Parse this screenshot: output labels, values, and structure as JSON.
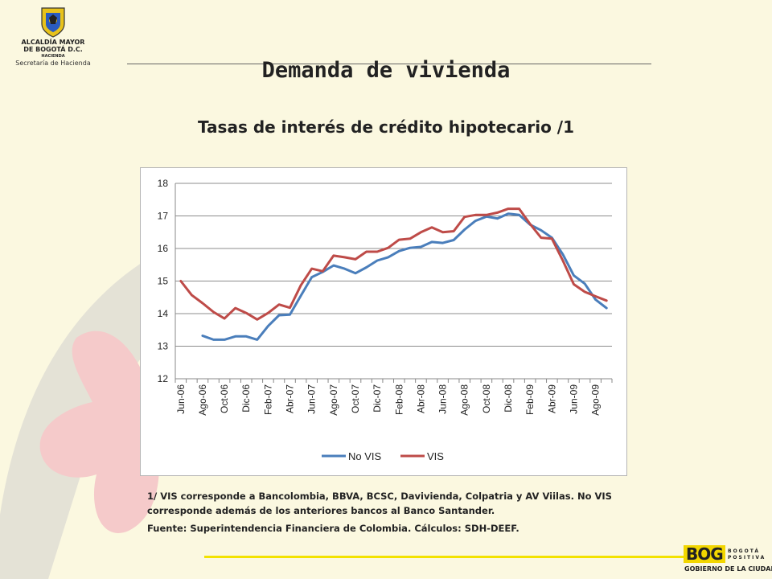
{
  "header": {
    "org_line1": "ALCALDÍA MAYOR",
    "org_line2": "DE BOGOTÁ D.C.",
    "org_line3": "HACIENDA",
    "org_line4": "Secretaría de Hacienda"
  },
  "title": "Demanda de vivienda",
  "subtitle": "Tasas de interés de crédito hipotecario /1",
  "footnote": "1/ VIS corresponde a Bancolombia, BBVA, BCSC, Davivienda, Colpatria y AV Viilas. No VIS corresponde además de los anteriores bancos al Banco Santander.",
  "source": "Fuente: Superintendencia Financiera de Colombia. Cálculos: SDH-DEEF.",
  "footer_logo": {
    "brand": "BOG",
    "slogan1": "BOGOTÁ",
    "slogan2": "POSITIVA",
    "tagline": "GOBIERNO DE LA CIUDAD"
  },
  "colors": {
    "background": "#fbf8e0",
    "series_no_vis": "#4a7ebb",
    "series_vis": "#be4b48",
    "accent_yellow": "#f2e200",
    "deco_red": "#f3c4c4",
    "deco_gray": "#e0e0d8"
  },
  "chart_data": {
    "type": "line",
    "ylim": [
      12,
      18
    ],
    "yticks": [
      "12",
      "13",
      "14",
      "15",
      "16",
      "17",
      "18"
    ],
    "grid": "horizontal",
    "legend_position": "bottom",
    "x_tick_labels": [
      "Jun-06",
      "Ago-06",
      "Oct-06",
      "Dic-06",
      "Feb-07",
      "Abr-07",
      "Jun-07",
      "Ago-07",
      "Oct-07",
      "Dic-07",
      "Feb-08",
      "Abr-08",
      "Jun-08",
      "Ago-08",
      "Oct-08",
      "Dic-08",
      "Feb-09",
      "Abr-09",
      "Jun-09",
      "Ago-09"
    ],
    "x": [
      "Jun-06",
      "Jul-06",
      "Ago-06",
      "Sep-06",
      "Oct-06",
      "Nov-06",
      "Dic-06",
      "Ene-07",
      "Feb-07",
      "Mar-07",
      "Abr-07",
      "May-07",
      "Jun-07",
      "Jul-07",
      "Ago-07",
      "Sep-07",
      "Oct-07",
      "Nov-07",
      "Dic-07",
      "Ene-08",
      "Feb-08",
      "Mar-08",
      "Abr-08",
      "May-08",
      "Jun-08",
      "Jul-08",
      "Ago-08",
      "Sep-08",
      "Oct-08",
      "Nov-08",
      "Dic-08",
      "Ene-09",
      "Feb-09",
      "Mar-09",
      "Abr-09",
      "May-09",
      "Jun-09",
      "Jul-09",
      "Ago-09",
      "Sep-09"
    ],
    "series": [
      {
        "name": "No VIS",
        "color": "#4a7ebb",
        "values": [
          null,
          null,
          13.32,
          13.2,
          13.2,
          13.3,
          13.3,
          13.2,
          13.62,
          13.95,
          13.97,
          14.55,
          15.12,
          15.28,
          15.48,
          15.38,
          15.24,
          15.42,
          15.63,
          15.73,
          15.92,
          16.02,
          16.05,
          16.2,
          16.17,
          16.26,
          16.58,
          16.85,
          16.98,
          16.92,
          17.07,
          17.03,
          16.73,
          16.56,
          16.33,
          15.82,
          15.17,
          14.92,
          14.43,
          14.17
        ]
      },
      {
        "name": "VIS",
        "color": "#be4b48",
        "values": [
          15.0,
          14.57,
          14.32,
          14.05,
          13.85,
          14.17,
          14.02,
          13.82,
          14.02,
          14.28,
          14.18,
          14.87,
          15.38,
          15.3,
          15.78,
          15.73,
          15.67,
          15.9,
          15.9,
          16.02,
          16.27,
          16.3,
          16.5,
          16.65,
          16.5,
          16.53,
          16.97,
          17.03,
          17.03,
          17.1,
          17.22,
          17.22,
          16.75,
          16.33,
          16.3,
          15.63,
          14.9,
          14.67,
          14.53,
          14.4
        ]
      }
    ]
  }
}
